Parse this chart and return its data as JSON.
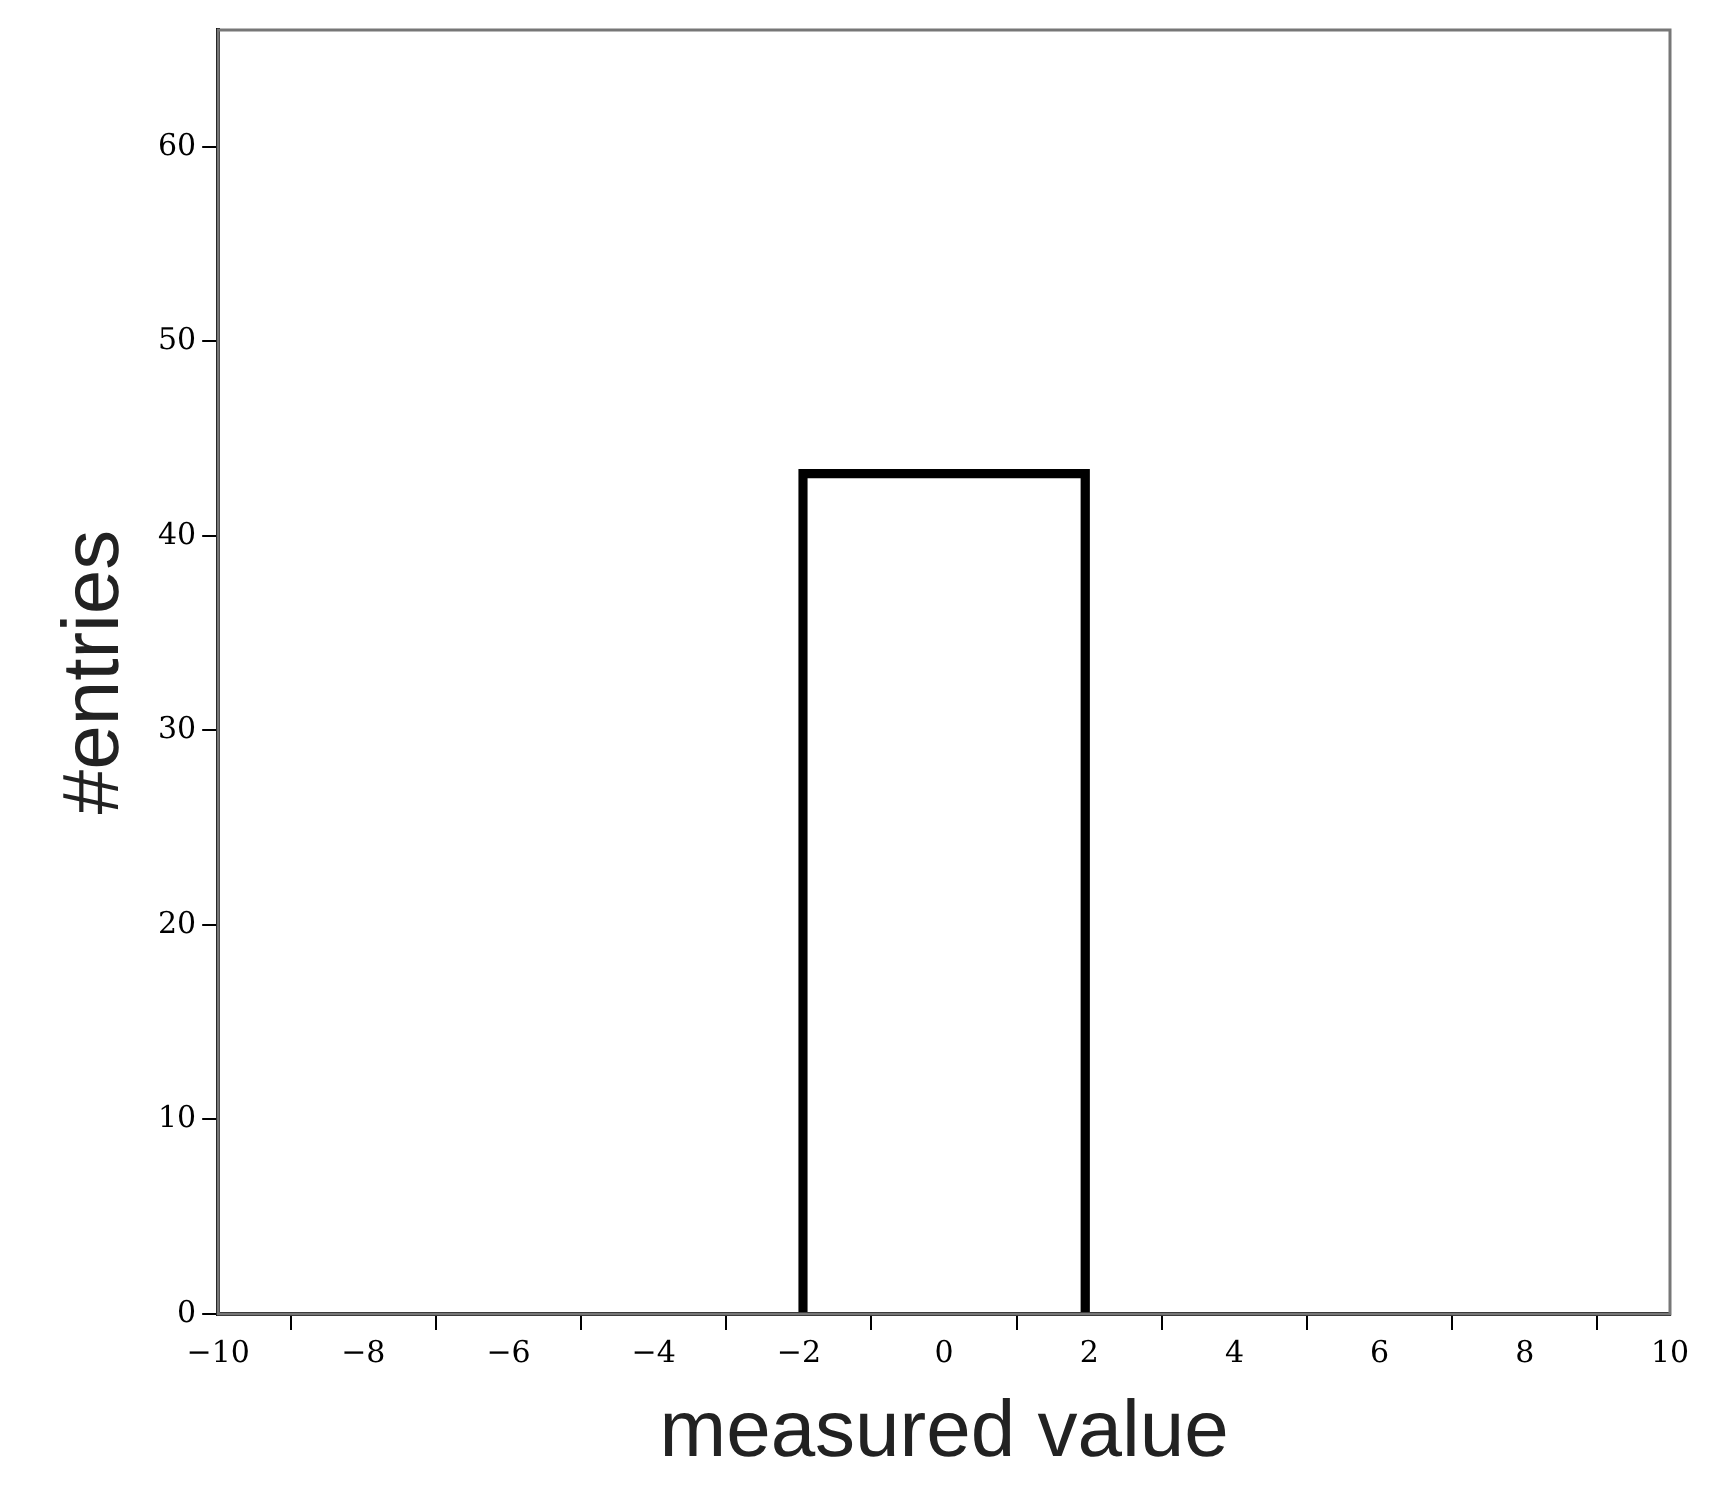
{
  "chart_data": {
    "type": "histogram",
    "xlabel": "measured value",
    "ylabel": "#entries",
    "bins": [
      -2,
      2
    ],
    "values": [
      43.4
    ],
    "color": "#000000",
    "xlim": [
      -10,
      10
    ],
    "xticks": [
      -10,
      -8,
      -6,
      -4,
      -2,
      0,
      2,
      4,
      6,
      8,
      10
    ],
    "ylim": [
      0,
      66
    ],
    "yticks": [
      0,
      10,
      20,
      30,
      40,
      50,
      60
    ],
    "grid": false,
    "legend": false
  }
}
